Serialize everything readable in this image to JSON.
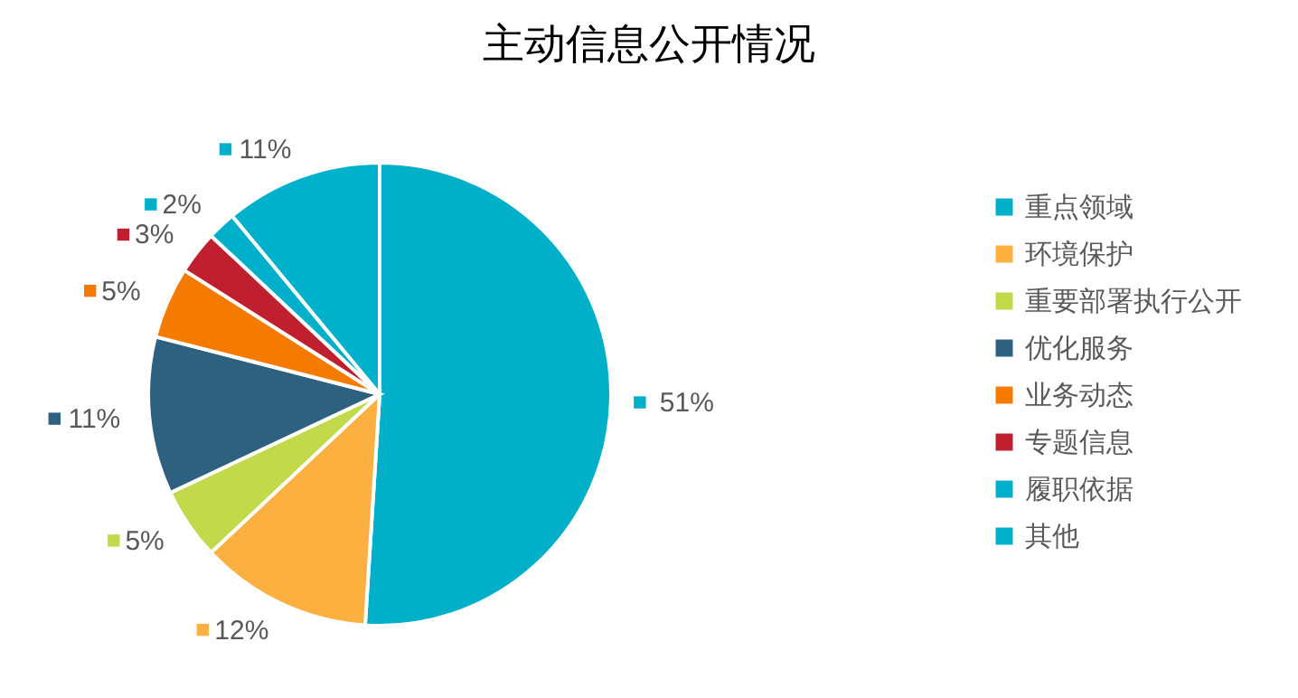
{
  "chart_data": {
    "type": "pie",
    "title": "主动信息公开情况",
    "categories": [
      "重点领域",
      "环境保护",
      "重要部署执行公开",
      "优化服务",
      "业务动态",
      "专题信息",
      "履职依据",
      "其他"
    ],
    "values": [
      51,
      12,
      5,
      11,
      5,
      3,
      2,
      11
    ],
    "value_labels": [
      "51%",
      "12%",
      "5%",
      "11%",
      "5%",
      "3%",
      "2%",
      "11%"
    ],
    "colors": [
      "#00afc8",
      "#fbb040",
      "#c2d94a",
      "#2e6180",
      "#f57a00",
      "#c01f30",
      "#00b0ca",
      "#00b1cc"
    ],
    "legend": "right"
  }
}
